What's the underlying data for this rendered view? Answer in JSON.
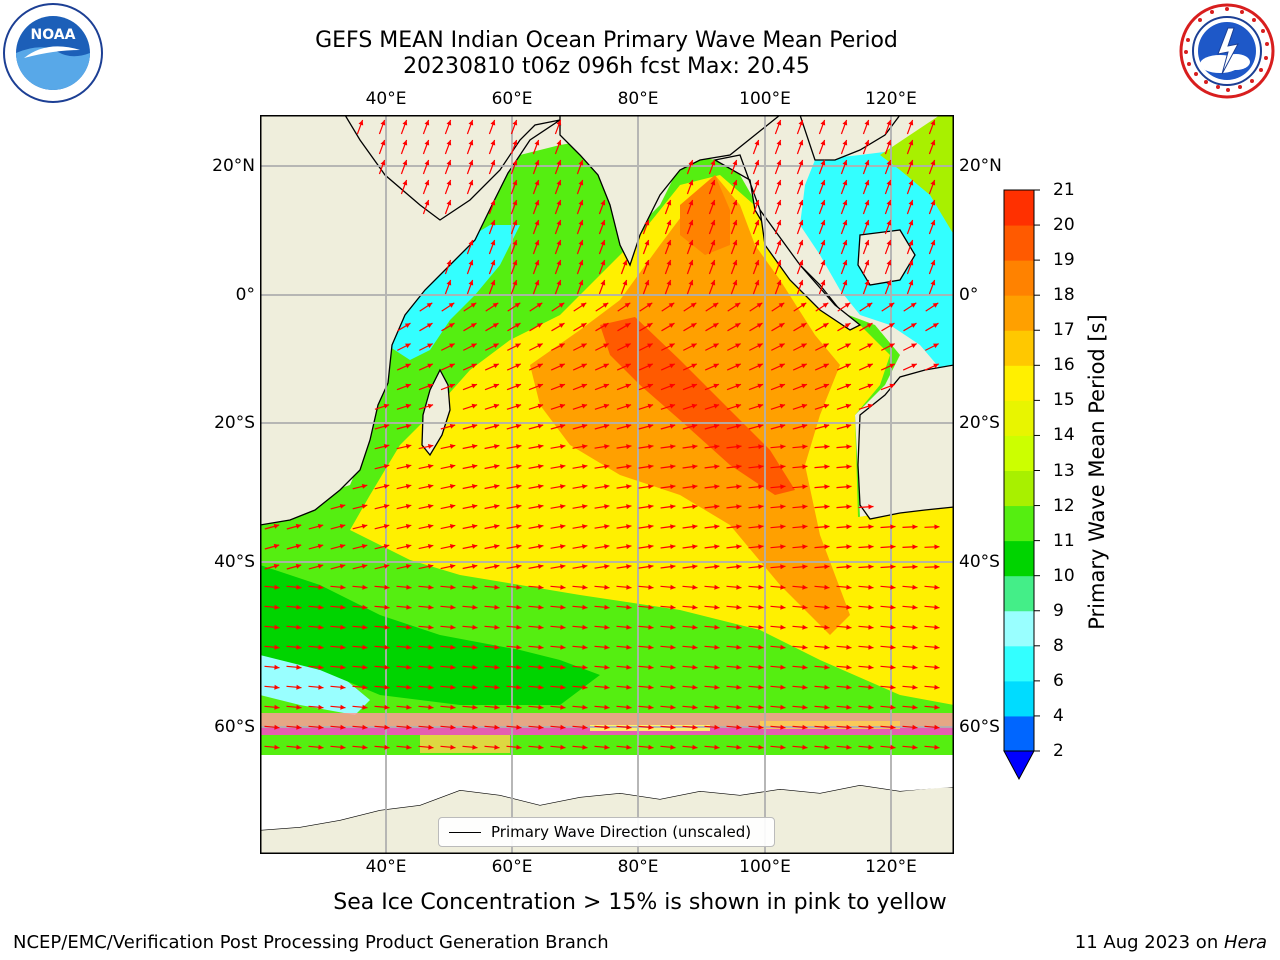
{
  "title": {
    "line1": "GEFS MEAN Indian Ocean Primary Wave Mean Period",
    "line2": "20230810 t06z 096h fcst   Max: 20.45"
  },
  "logos": {
    "left": {
      "icon": "noaa-logo",
      "text": "NOAA",
      "ring_text": "NATIONAL OCEANIC AND ATMOSPHERIC ADMINISTRATION · U.S. DEPARTMENT OF COMMERCE"
    },
    "right": {
      "icon": "national-weather-service-logo",
      "ring_text": "NATIONAL WEATHER SERVICE"
    }
  },
  "map": {
    "lon_range": [
      20,
      130
    ],
    "lat_range": [
      -73,
      27
    ],
    "lon_ticks": [
      {
        "label": "40°E"
      },
      {
        "label": "60°E"
      },
      {
        "label": "80°E"
      },
      {
        "label": "100°E"
      },
      {
        "label": "120°E"
      }
    ],
    "lat_ticks": [
      {
        "label": "20°N"
      },
      {
        "label": "0°"
      },
      {
        "label": "20°S"
      },
      {
        "label": "40°S"
      },
      {
        "label": "60°S"
      }
    ],
    "grid": true,
    "land_color": "#efeedc",
    "arrow_color": "#ff0000",
    "sea_ice_colors": [
      "#ff44cc",
      "#ff9a9a",
      "#ffd24d",
      "#ffff66"
    ]
  },
  "legend": {
    "label": "Primary Wave Direction (unscaled)",
    "placement": "bottom-center"
  },
  "colorbar": {
    "label": "Primary Wave Mean Period [s]",
    "levels": [
      "2",
      "4",
      "6",
      "8",
      "9",
      "10",
      "11",
      "12",
      "13",
      "14",
      "15",
      "16",
      "17",
      "18",
      "19",
      "20",
      "21"
    ],
    "colors": [
      "#0066ff",
      "#00dcff",
      "#33ffff",
      "#99ffff",
      "#44ee88",
      "#00d400",
      "#55ee11",
      "#a8f000",
      "#ccff00",
      "#e8f500",
      "#fff000",
      "#ffc800",
      "#ffa000",
      "#ff8200",
      "#ff5a00",
      "#ff3000"
    ],
    "extend_color": "#0000ff"
  },
  "caption": "Sea Ice Concentration > 15% is shown in pink to yellow",
  "footer": {
    "left": "NCEP/EMC/Verification Post Processing Product Generation Branch",
    "date": "11 Aug 2023 on ",
    "host": "Hera"
  }
}
